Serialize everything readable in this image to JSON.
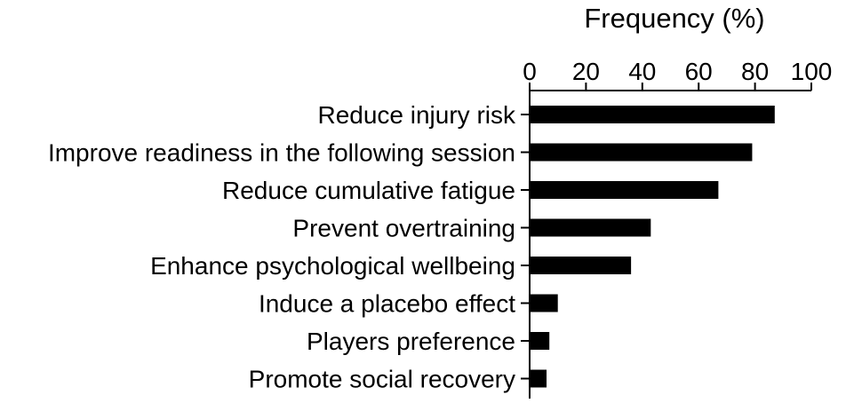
{
  "chart_data": {
    "type": "bar",
    "orientation": "horizontal",
    "xlabel": "Frequency (%)",
    "xlabel_position": "top",
    "xlim": [
      0,
      100
    ],
    "xticks": [
      "0",
      "20",
      "40",
      "60",
      "80",
      "100"
    ],
    "grid": false,
    "categories": [
      "Reduce injury risk",
      "Improve readiness in the following session",
      "Reduce cumulative fatigue",
      "Prevent overtraining",
      "Enhance psychological wellbeing",
      "Induce a placebo effect",
      "Players preference",
      "Promote social recovery"
    ],
    "values": [
      87,
      79,
      67,
      43,
      36,
      10,
      7,
      6
    ],
    "bar_color": "#000000"
  }
}
